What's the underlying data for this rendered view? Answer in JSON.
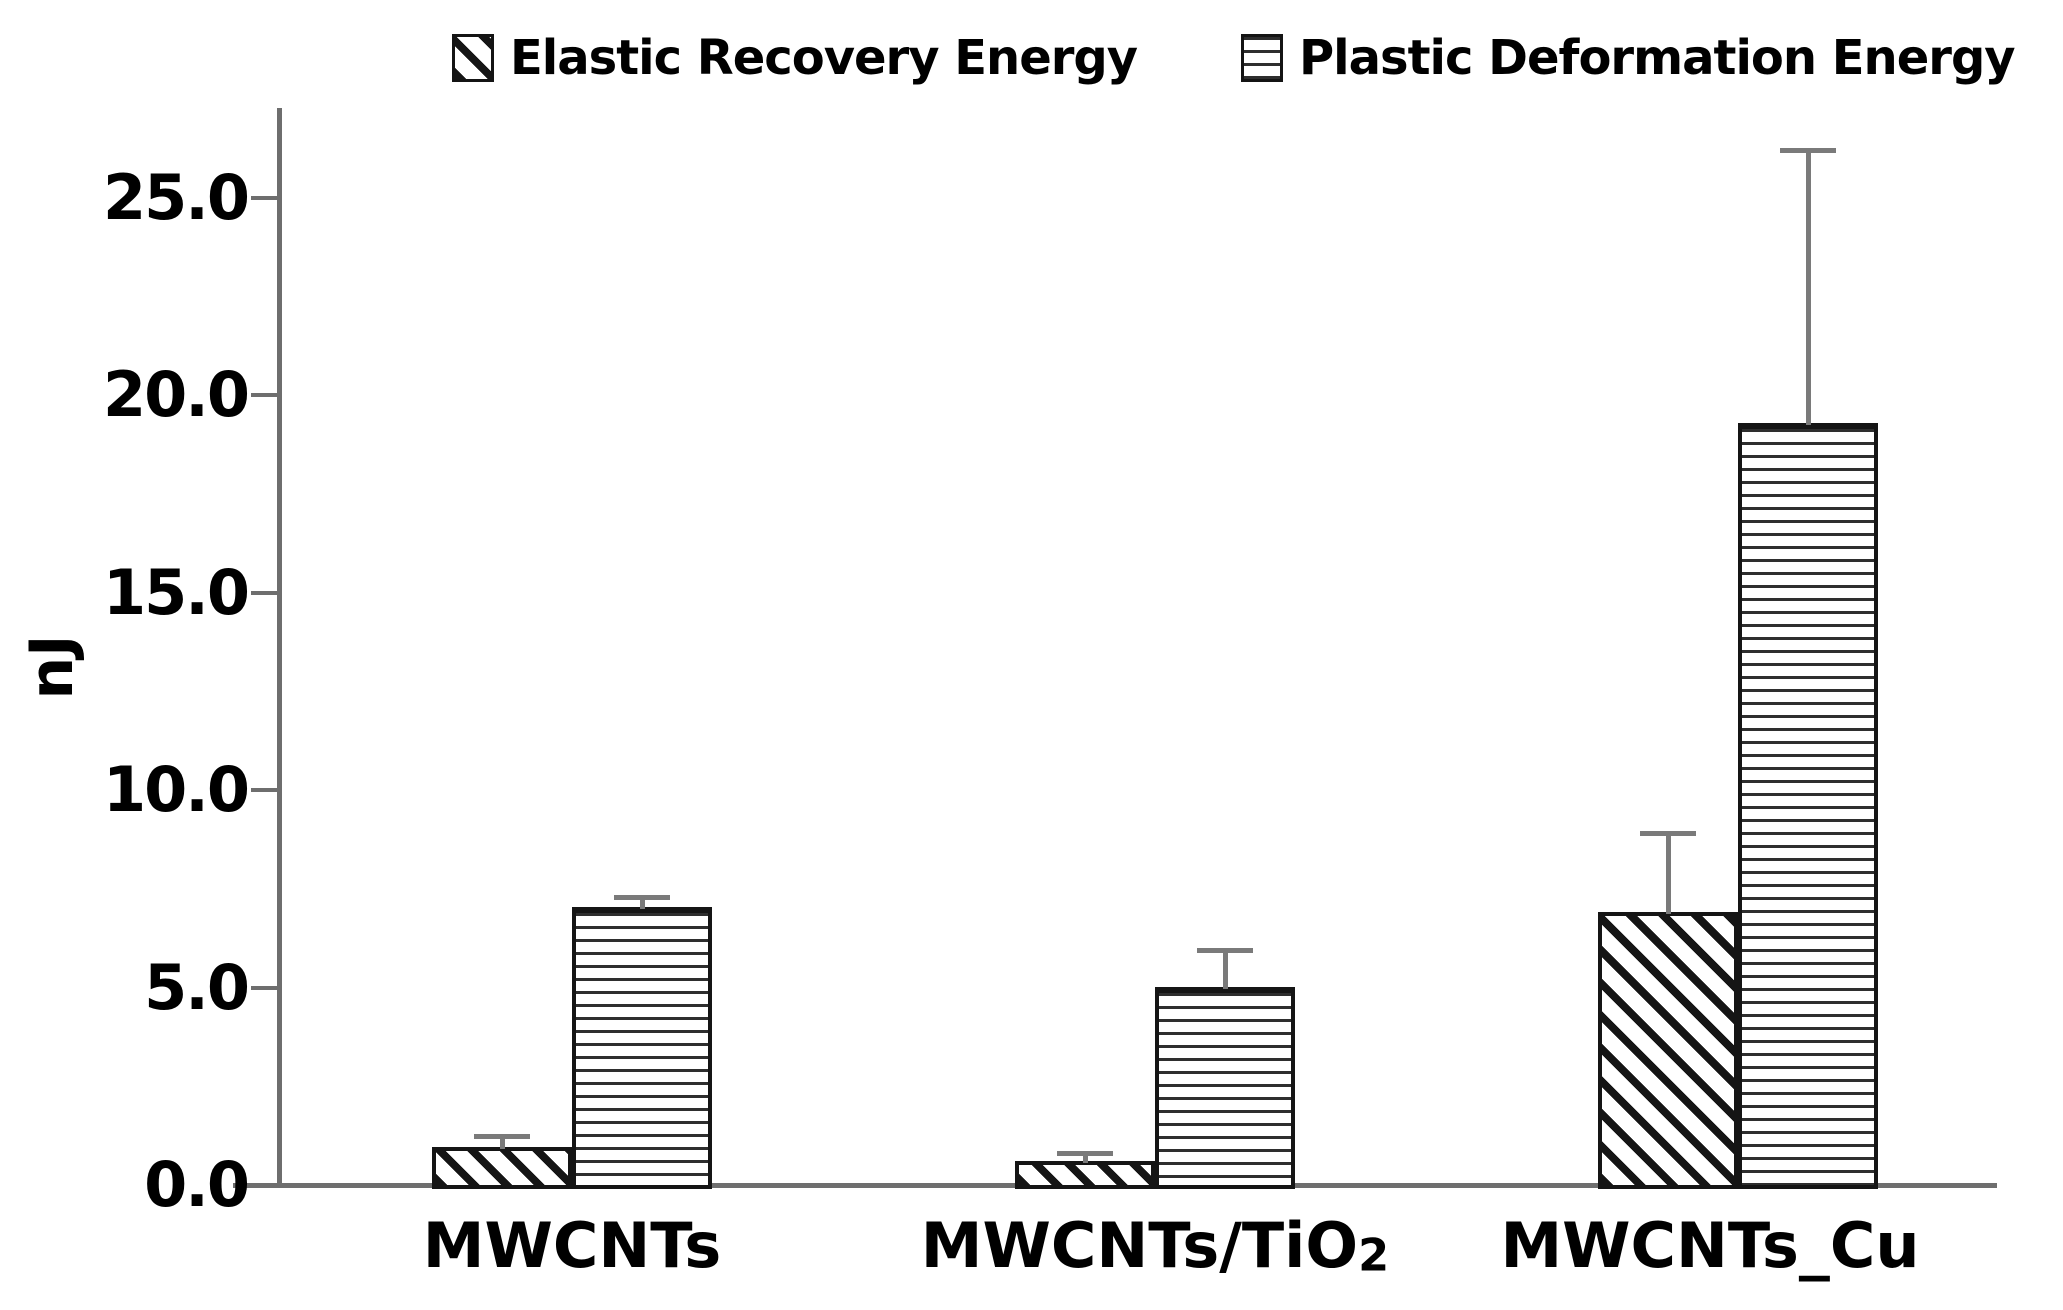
{
  "colors": {
    "background": "#ffffff",
    "axis": "#6e6e6e",
    "error_bar": "#7a7a7a",
    "bar_border": "#151515",
    "text": "#000000"
  },
  "legend": {
    "items": [
      {
        "label": "Elastic Recovery Energy",
        "pattern": "diagonal-hatch"
      },
      {
        "label": "Plastic Deformation Energy",
        "pattern": "horizontal-lines"
      }
    ]
  },
  "chart_data": {
    "type": "bar",
    "title": "",
    "xlabel": "",
    "ylabel": "nJ",
    "ylim": [
      0,
      27.3
    ],
    "grid": false,
    "legend_position": "top",
    "y_ticks": {
      "values": [
        0,
        5,
        10,
        15,
        20,
        25
      ],
      "labels": [
        "0.0",
        "5.0",
        "10.0",
        "15.0",
        "20.0",
        "25.0"
      ]
    },
    "categories": [
      "MWCNTs",
      "MWCNTs/TiO2",
      "MWCNTs_Cu"
    ],
    "categories_display": [
      {
        "text": "MWCNTs",
        "sub": ""
      },
      {
        "text": "MWCNTs/TiO",
        "sub": "2"
      },
      {
        "text": "MWCNTs_Cu",
        "sub": ""
      }
    ],
    "series": [
      {
        "name": "Elastic Recovery Energy",
        "pattern": "diagonal-hatch",
        "values": [
          0.95,
          0.6,
          6.9
        ],
        "error_plus": [
          0.3,
          0.2,
          2.0
        ]
      },
      {
        "name": "Plastic Deformation Energy",
        "pattern": "horizontal-lines",
        "values": [
          7.05,
          5.0,
          19.3
        ],
        "error_plus": [
          0.25,
          0.95,
          6.9
        ]
      }
    ]
  }
}
